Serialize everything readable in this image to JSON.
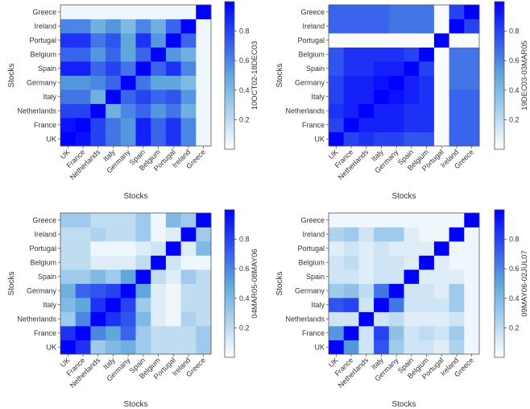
{
  "colors": {
    "low": "#ffffff",
    "mid": "#5fa7dd",
    "high": "#0000ff",
    "frame": "#555555"
  },
  "chart_data": [
    {
      "type": "heatmap",
      "title": "",
      "xlabel": "Stocks",
      "ylabel": "Stocks",
      "colorbar_label": "10OCT02-18DEC03",
      "colorbar_ticks": [
        "0.2",
        "0.4",
        "0.6",
        "0.8"
      ],
      "colorbar_tick_values": [
        0.2,
        0.4,
        0.6,
        0.8
      ],
      "value_range": [
        0,
        1
      ],
      "x_categories": [
        "UK",
        "France",
        "Netherlands",
        "Italy",
        "Germany",
        "Spain",
        "Belgium",
        "Portugal",
        "Ireland",
        "Greece"
      ],
      "y_categories": [
        "UK",
        "France",
        "Netherlands",
        "Italy",
        "Germany",
        "Spain",
        "Belgium",
        "Portugal",
        "Ireland",
        "Greece"
      ],
      "matrix": [
        [
          1.0,
          0.95,
          0.8,
          0.65,
          0.55,
          0.9,
          0.7,
          0.85,
          0.6,
          0.05
        ],
        [
          0.95,
          1.0,
          0.8,
          0.65,
          0.55,
          0.9,
          0.7,
          0.85,
          0.6,
          0.05
        ],
        [
          0.8,
          0.8,
          1.0,
          0.45,
          0.6,
          0.7,
          0.55,
          0.65,
          0.45,
          0.05
        ],
        [
          0.65,
          0.65,
          0.45,
          1.0,
          0.7,
          0.8,
          0.7,
          0.75,
          0.55,
          0.05
        ],
        [
          0.55,
          0.55,
          0.6,
          0.7,
          1.0,
          0.65,
          0.5,
          0.5,
          0.4,
          0.05
        ],
        [
          0.9,
          0.9,
          0.7,
          0.8,
          0.65,
          1.0,
          0.7,
          0.85,
          0.6,
          0.05
        ],
        [
          0.7,
          0.7,
          0.55,
          0.7,
          0.5,
          0.7,
          1.0,
          0.55,
          0.45,
          0.05
        ],
        [
          0.85,
          0.85,
          0.65,
          0.75,
          0.5,
          0.85,
          0.55,
          1.0,
          0.7,
          0.05
        ],
        [
          0.6,
          0.6,
          0.45,
          0.55,
          0.4,
          0.6,
          0.45,
          0.7,
          1.0,
          0.05
        ],
        [
          0.05,
          0.05,
          0.05,
          0.05,
          0.05,
          0.05,
          0.05,
          0.05,
          0.05,
          1.0
        ]
      ]
    },
    {
      "type": "heatmap",
      "title": "",
      "xlabel": "Stocks",
      "ylabel": "Stocks",
      "colorbar_label": "19DEC03-03MAR05",
      "colorbar_ticks": [
        "0.2",
        "0.4",
        "0.6",
        "0.8"
      ],
      "colorbar_tick_values": [
        0.2,
        0.4,
        0.6,
        0.8
      ],
      "value_range": [
        0,
        1
      ],
      "x_categories": [
        "UK",
        "France",
        "Netherlands",
        "Italy",
        "Germany",
        "Spain",
        "Belgium",
        "Portugal",
        "Ireland",
        "Greece"
      ],
      "y_categories": [
        "UK",
        "France",
        "Netherlands",
        "Italy",
        "Germany",
        "Spain",
        "Belgium",
        "Portugal",
        "Ireland",
        "Greece"
      ],
      "matrix": [
        [
          1.0,
          0.8,
          0.85,
          0.8,
          0.8,
          0.75,
          0.75,
          0.02,
          0.7,
          0.7
        ],
        [
          0.8,
          1.0,
          0.9,
          0.9,
          0.9,
          0.85,
          0.85,
          0.02,
          0.7,
          0.7
        ],
        [
          0.85,
          0.9,
          1.0,
          0.9,
          0.9,
          0.85,
          0.85,
          0.02,
          0.7,
          0.7
        ],
        [
          0.8,
          0.9,
          0.9,
          1.0,
          0.95,
          0.9,
          0.85,
          0.02,
          0.7,
          0.7
        ],
        [
          0.8,
          0.9,
          0.9,
          0.95,
          1.0,
          0.9,
          0.85,
          0.02,
          0.65,
          0.65
        ],
        [
          0.75,
          0.85,
          0.85,
          0.9,
          0.9,
          1.0,
          0.8,
          0.02,
          0.65,
          0.65
        ],
        [
          0.75,
          0.85,
          0.85,
          0.85,
          0.85,
          0.8,
          1.0,
          0.02,
          0.65,
          0.65
        ],
        [
          0.02,
          0.02,
          0.02,
          0.02,
          0.02,
          0.02,
          0.02,
          1.0,
          0.02,
          0.02
        ],
        [
          0.7,
          0.7,
          0.7,
          0.7,
          0.65,
          0.65,
          0.65,
          0.02,
          1.0,
          0.8
        ],
        [
          0.7,
          0.7,
          0.7,
          0.7,
          0.65,
          0.65,
          0.65,
          0.02,
          0.8,
          1.0
        ]
      ]
    },
    {
      "type": "heatmap",
      "title": "",
      "xlabel": "Stocks",
      "ylabel": "Stocks",
      "colorbar_label": "04MAR05-08MAY06",
      "colorbar_ticks": [
        "0.2",
        "0.4",
        "0.6",
        "0.8"
      ],
      "colorbar_tick_values": [
        0.2,
        0.4,
        0.6,
        0.8
      ],
      "value_range": [
        0,
        1
      ],
      "x_categories": [
        "UK",
        "France",
        "Netherlands",
        "Italy",
        "Germany",
        "Spain",
        "Belgium",
        "Portugal",
        "Ireland",
        "Greece"
      ],
      "y_categories": [
        "UK",
        "France",
        "Netherlands",
        "Italy",
        "Germany",
        "Spain",
        "Belgium",
        "Portugal",
        "Ireland",
        "Greece"
      ],
      "matrix": [
        [
          1.0,
          0.85,
          0.3,
          0.4,
          0.45,
          0.3,
          0.2,
          0.2,
          0.2,
          0.3
        ],
        [
          0.85,
          1.0,
          0.6,
          0.5,
          0.7,
          0.3,
          0.2,
          0.2,
          0.2,
          0.3
        ],
        [
          0.3,
          0.6,
          1.0,
          0.85,
          0.75,
          0.4,
          0.1,
          0.05,
          0.25,
          0.2
        ],
        [
          0.4,
          0.5,
          0.85,
          1.0,
          0.8,
          0.3,
          0.1,
          0.05,
          0.2,
          0.2
        ],
        [
          0.45,
          0.7,
          0.75,
          0.8,
          1.0,
          0.5,
          0.1,
          0.05,
          0.2,
          0.2
        ],
        [
          0.3,
          0.3,
          0.4,
          0.3,
          0.5,
          1.0,
          0.2,
          0.1,
          0.3,
          0.2
        ],
        [
          0.2,
          0.2,
          0.1,
          0.1,
          0.1,
          0.2,
          1.0,
          0.15,
          0.05,
          0.05
        ],
        [
          0.2,
          0.2,
          0.05,
          0.05,
          0.05,
          0.1,
          0.15,
          1.0,
          0.1,
          0.4
        ],
        [
          0.2,
          0.2,
          0.25,
          0.2,
          0.2,
          0.3,
          0.05,
          0.1,
          1.0,
          0.3
        ],
        [
          0.3,
          0.3,
          0.2,
          0.2,
          0.2,
          0.3,
          0.05,
          0.4,
          0.3,
          1.0
        ]
      ]
    },
    {
      "type": "heatmap",
      "title": "",
      "xlabel": "Stocks",
      "ylabel": "Stocks",
      "colorbar_label": "09MAY06-02JUL07",
      "colorbar_ticks": [
        "0.2",
        "0.4",
        "0.6",
        "0.8"
      ],
      "colorbar_tick_values": [
        0.2,
        0.4,
        0.6,
        0.8
      ],
      "value_range": [
        0,
        1
      ],
      "x_categories": [
        "UK",
        "France",
        "Netherlands",
        "Italy",
        "Germany",
        "Spain",
        "Belgium",
        "Portugal",
        "Ireland",
        "Greece"
      ],
      "y_categories": [
        "UK",
        "France",
        "Netherlands",
        "Italy",
        "Germany",
        "Spain",
        "Belgium",
        "Portugal",
        "Ireland",
        "Greece"
      ],
      "matrix": [
        [
          1.0,
          0.55,
          0.15,
          0.75,
          0.3,
          0.15,
          0.15,
          0.1,
          0.25,
          0.05
        ],
        [
          0.55,
          1.0,
          0.15,
          0.8,
          0.35,
          0.15,
          0.2,
          0.15,
          0.3,
          0.05
        ],
        [
          0.15,
          0.15,
          1.0,
          0.15,
          0.2,
          0.1,
          0.1,
          0.1,
          0.15,
          0.05
        ],
        [
          0.75,
          0.8,
          0.15,
          1.0,
          0.65,
          0.15,
          0.15,
          0.15,
          0.3,
          0.05
        ],
        [
          0.3,
          0.35,
          0.2,
          0.65,
          1.0,
          0.15,
          0.15,
          0.1,
          0.3,
          0.05
        ],
        [
          0.15,
          0.15,
          0.1,
          0.15,
          0.15,
          1.0,
          0.1,
          0.1,
          0.1,
          0.05
        ],
        [
          0.15,
          0.2,
          0.1,
          0.15,
          0.15,
          0.1,
          1.0,
          0.1,
          0.05,
          0.05
        ],
        [
          0.1,
          0.15,
          0.1,
          0.15,
          0.1,
          0.1,
          0.1,
          1.0,
          0.05,
          0.05
        ],
        [
          0.25,
          0.3,
          0.15,
          0.3,
          0.3,
          0.1,
          0.05,
          0.05,
          1.0,
          0.05
        ],
        [
          0.05,
          0.05,
          0.05,
          0.05,
          0.05,
          0.05,
          0.05,
          0.05,
          0.05,
          1.0
        ]
      ]
    }
  ]
}
